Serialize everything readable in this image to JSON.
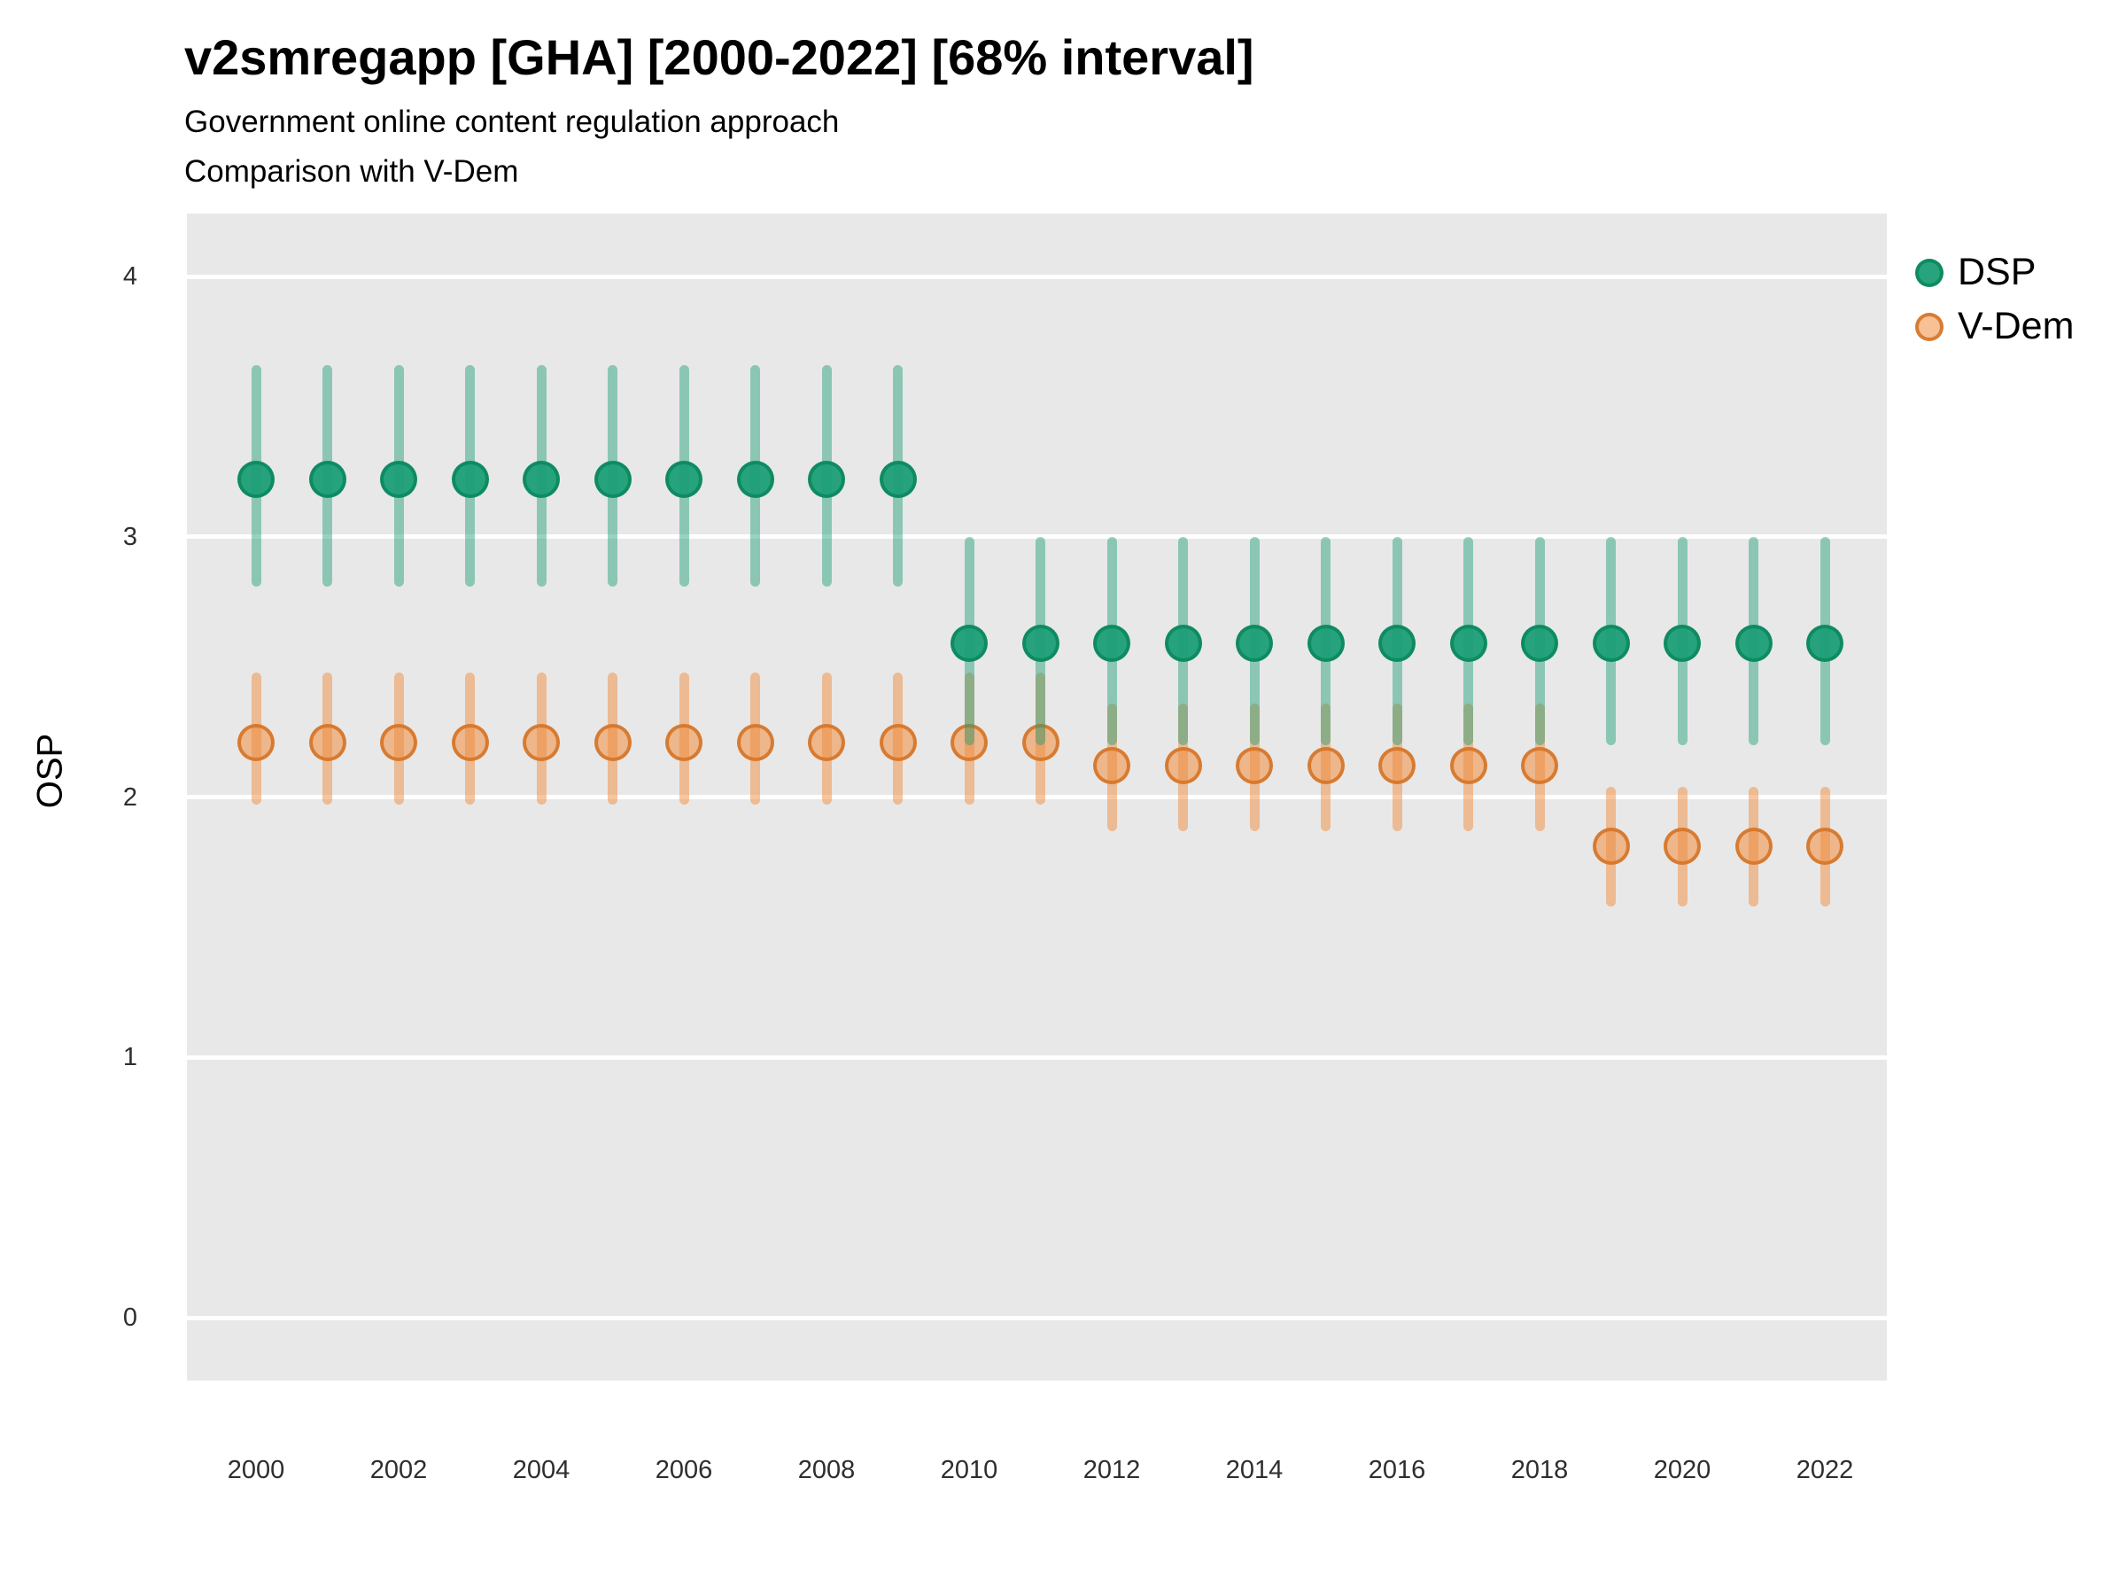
{
  "header": {
    "title": "v2smregapp [GHA] [2000-2022] [68% interval]",
    "subtitle1": "Government online content regulation approach",
    "subtitle2": "Comparison with V-Dem"
  },
  "legend": {
    "items": [
      {
        "label": "DSP"
      },
      {
        "label": "V-Dem"
      }
    ]
  },
  "colors": {
    "dsp": "#1b9e77",
    "dsp_bar": "rgba(27,158,119,0.45)",
    "dsp_fill": "rgba(27,158,119,0.95)",
    "dsp_stroke": "rgba(14,138,96,0.95)",
    "vdem": "#f08c3e",
    "vdem_bar": "rgba(240,140,62,0.5)",
    "vdem_fill": "rgba(240,140,62,0.55)",
    "vdem_stroke": "rgba(213,117,40,0.9)",
    "panel_bg": "#e8e8e8",
    "gridline": "#ffffff"
  },
  "chart_data": {
    "type": "pointrange",
    "title": "v2smregapp [GHA] [2000-2022] [68% interval]",
    "interval": "68%",
    "xlabel": "",
    "ylabel": "OSP",
    "x_ticks": [
      2000,
      2002,
      2004,
      2006,
      2008,
      2010,
      2012,
      2014,
      2016,
      2018,
      2020,
      2022
    ],
    "y_ticks": [
      0,
      1,
      2,
      3,
      4
    ],
    "ylim": [
      -0.25,
      4.25
    ],
    "grid": "major-horizontal-only",
    "legend_position": "right",
    "series": [
      {
        "name": "V-Dem",
        "points": [
          {
            "year": 2000,
            "est": 2.21,
            "lo": 1.97,
            "hi": 2.48
          },
          {
            "year": 2001,
            "est": 2.21,
            "lo": 1.97,
            "hi": 2.48
          },
          {
            "year": 2002,
            "est": 2.21,
            "lo": 1.97,
            "hi": 2.48
          },
          {
            "year": 2003,
            "est": 2.21,
            "lo": 1.97,
            "hi": 2.48
          },
          {
            "year": 2004,
            "est": 2.21,
            "lo": 1.97,
            "hi": 2.48
          },
          {
            "year": 2005,
            "est": 2.21,
            "lo": 1.97,
            "hi": 2.48
          },
          {
            "year": 2006,
            "est": 2.21,
            "lo": 1.97,
            "hi": 2.48
          },
          {
            "year": 2007,
            "est": 2.21,
            "lo": 1.97,
            "hi": 2.48
          },
          {
            "year": 2008,
            "est": 2.21,
            "lo": 1.97,
            "hi": 2.48
          },
          {
            "year": 2009,
            "est": 2.21,
            "lo": 1.97,
            "hi": 2.48
          },
          {
            "year": 2010,
            "est": 2.21,
            "lo": 1.97,
            "hi": 2.48
          },
          {
            "year": 2011,
            "est": 2.21,
            "lo": 1.97,
            "hi": 2.48
          },
          {
            "year": 2012,
            "est": 2.12,
            "lo": 1.87,
            "hi": 2.36
          },
          {
            "year": 2013,
            "est": 2.12,
            "lo": 1.87,
            "hi": 2.36
          },
          {
            "year": 2014,
            "est": 2.12,
            "lo": 1.87,
            "hi": 2.36
          },
          {
            "year": 2015,
            "est": 2.12,
            "lo": 1.87,
            "hi": 2.36
          },
          {
            "year": 2016,
            "est": 2.12,
            "lo": 1.87,
            "hi": 2.36
          },
          {
            "year": 2017,
            "est": 2.12,
            "lo": 1.87,
            "hi": 2.36
          },
          {
            "year": 2018,
            "est": 2.12,
            "lo": 1.87,
            "hi": 2.36
          },
          {
            "year": 2019,
            "est": 1.81,
            "lo": 1.58,
            "hi": 2.04
          },
          {
            "year": 2020,
            "est": 1.81,
            "lo": 1.58,
            "hi": 2.04
          },
          {
            "year": 2021,
            "est": 1.81,
            "lo": 1.58,
            "hi": 2.04
          },
          {
            "year": 2022,
            "est": 1.81,
            "lo": 1.58,
            "hi": 2.04
          }
        ]
      },
      {
        "name": "DSP",
        "points": [
          {
            "year": 2000,
            "est": 3.22,
            "lo": 2.81,
            "hi": 3.66
          },
          {
            "year": 2001,
            "est": 3.22,
            "lo": 2.81,
            "hi": 3.66
          },
          {
            "year": 2002,
            "est": 3.22,
            "lo": 2.81,
            "hi": 3.66
          },
          {
            "year": 2003,
            "est": 3.22,
            "lo": 2.81,
            "hi": 3.66
          },
          {
            "year": 2004,
            "est": 3.22,
            "lo": 2.81,
            "hi": 3.66
          },
          {
            "year": 2005,
            "est": 3.22,
            "lo": 2.81,
            "hi": 3.66
          },
          {
            "year": 2006,
            "est": 3.22,
            "lo": 2.81,
            "hi": 3.66
          },
          {
            "year": 2007,
            "est": 3.22,
            "lo": 2.81,
            "hi": 3.66
          },
          {
            "year": 2008,
            "est": 3.22,
            "lo": 2.81,
            "hi": 3.66
          },
          {
            "year": 2009,
            "est": 3.22,
            "lo": 2.81,
            "hi": 3.66
          },
          {
            "year": 2010,
            "est": 2.59,
            "lo": 2.2,
            "hi": 3.0
          },
          {
            "year": 2011,
            "est": 2.59,
            "lo": 2.2,
            "hi": 3.0
          },
          {
            "year": 2012,
            "est": 2.59,
            "lo": 2.2,
            "hi": 3.0
          },
          {
            "year": 2013,
            "est": 2.59,
            "lo": 2.2,
            "hi": 3.0
          },
          {
            "year": 2014,
            "est": 2.59,
            "lo": 2.2,
            "hi": 3.0
          },
          {
            "year": 2015,
            "est": 2.59,
            "lo": 2.2,
            "hi": 3.0
          },
          {
            "year": 2016,
            "est": 2.59,
            "lo": 2.2,
            "hi": 3.0
          },
          {
            "year": 2017,
            "est": 2.59,
            "lo": 2.2,
            "hi": 3.0
          },
          {
            "year": 2018,
            "est": 2.59,
            "lo": 2.2,
            "hi": 3.0
          },
          {
            "year": 2019,
            "est": 2.59,
            "lo": 2.2,
            "hi": 3.0
          },
          {
            "year": 2020,
            "est": 2.59,
            "lo": 2.2,
            "hi": 3.0
          },
          {
            "year": 2021,
            "est": 2.59,
            "lo": 2.2,
            "hi": 3.0
          },
          {
            "year": 2022,
            "est": 2.59,
            "lo": 2.2,
            "hi": 3.0
          }
        ]
      }
    ]
  }
}
